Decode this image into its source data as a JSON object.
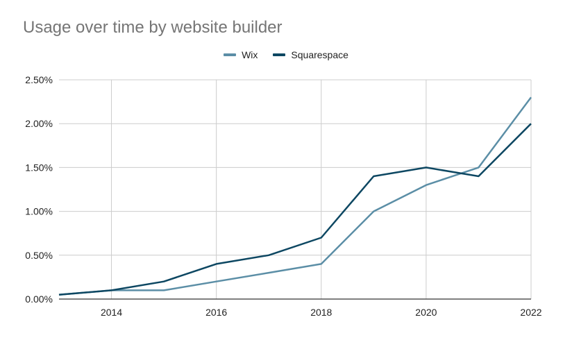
{
  "title": "Usage over time by website builder",
  "chart_data": {
    "type": "line",
    "title": "Usage over time by website builder",
    "xlabel": "",
    "ylabel": "",
    "x": [
      2013,
      2014,
      2015,
      2016,
      2017,
      2018,
      2019,
      2020,
      2021,
      2022
    ],
    "xlim": [
      2013,
      2022
    ],
    "xticks": [
      "2014",
      "2016",
      "2018",
      "2020",
      "2022"
    ],
    "ylim": [
      0,
      0.025
    ],
    "yticks": [
      "0.00%",
      "0.50%",
      "1.00%",
      "1.50%",
      "2.00%",
      "2.50%"
    ],
    "grid": true,
    "legend_position": "top",
    "series": [
      {
        "name": "Wix",
        "color": "#5b8ea6",
        "values": [
          0.0005,
          0.001,
          0.001,
          0.002,
          0.003,
          0.004,
          0.01,
          0.013,
          0.015,
          0.023
        ]
      },
      {
        "name": "Squarespace",
        "color": "#0d4762",
        "values": [
          0.0005,
          0.001,
          0.002,
          0.004,
          0.005,
          0.007,
          0.014,
          0.015,
          0.014,
          0.02
        ]
      }
    ]
  }
}
